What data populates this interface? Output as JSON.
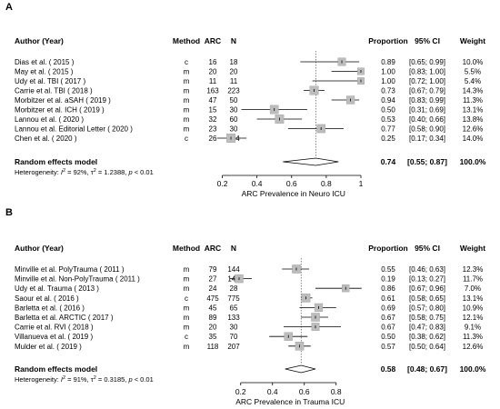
{
  "chart_data": [
    {
      "type": "forest",
      "panel": "A",
      "headers": {
        "study": "Author (Year)",
        "method": "Method",
        "events": "ARC",
        "total": "N",
        "estimate": "Proportion",
        "ci": "95% CI",
        "weight": "Weight"
      },
      "rows": [
        {
          "study": "Dias et al. ( 2015 )",
          "method": "c",
          "events": "16",
          "total": "18",
          "prop": 0.89,
          "lo": 0.65,
          "hi": 0.99,
          "prop_text": "0.89",
          "ci_text": "[0.65; 0.99]",
          "weight_text": "10.0%",
          "weight": 10.0
        },
        {
          "study": "May et al. ( 2015 )",
          "method": "m",
          "events": "20",
          "total": "20",
          "prop": 1.0,
          "lo": 0.83,
          "hi": 1.0,
          "prop_text": "1.00",
          "ci_text": "[0.83; 1.00]",
          "weight_text": "5.5%",
          "weight": 5.5
        },
        {
          "study": "Udy et al. TBI ( 2017 )",
          "method": "m",
          "events": "11",
          "total": "11",
          "prop": 1.0,
          "lo": 0.72,
          "hi": 1.0,
          "prop_text": "1.00",
          "ci_text": "[0.72; 1.00]",
          "weight_text": "5.4%",
          "weight": 5.4
        },
        {
          "study": "Carrie et al. TBI ( 2018 )",
          "method": "m",
          "events": "163",
          "total": "223",
          "prop": 0.73,
          "lo": 0.67,
          "hi": 0.79,
          "prop_text": "0.73",
          "ci_text": "[0.67; 0.79]",
          "weight_text": "14.3%",
          "weight": 14.3
        },
        {
          "study": "Morbitzer et al. aSAH ( 2019 )",
          "method": "m",
          "events": "47",
          "total": "50",
          "prop": 0.94,
          "lo": 0.83,
          "hi": 0.99,
          "prop_text": "0.94",
          "ci_text": "[0.83; 0.99]",
          "weight_text": "11.3%",
          "weight": 11.3
        },
        {
          "study": "Morbitzer et al. ICH ( 2019 )",
          "method": "m",
          "events": "15",
          "total": "30",
          "prop": 0.5,
          "lo": 0.31,
          "hi": 0.69,
          "prop_text": "0.50",
          "ci_text": "[0.31; 0.69]",
          "weight_text": "13.1%",
          "weight": 13.1
        },
        {
          "study": "Lannou et al. ( 2020 )",
          "method": "m",
          "events": "32",
          "total": "60",
          "prop": 0.53,
          "lo": 0.4,
          "hi": 0.66,
          "prop_text": "0.53",
          "ci_text": "[0.40; 0.66]",
          "weight_text": "13.8%",
          "weight": 13.8
        },
        {
          "study": "Lannou et al. Editorial Letter ( 2020 )",
          "method": "m",
          "events": "23",
          "total": "30",
          "prop": 0.77,
          "lo": 0.58,
          "hi": 0.9,
          "prop_text": "0.77",
          "ci_text": "[0.58; 0.90]",
          "weight_text": "12.6%",
          "weight": 12.6
        },
        {
          "study": "Chen et al. ( 2020 )",
          "method": "c",
          "events": "26",
          "total": "104",
          "prop": 0.25,
          "lo": 0.17,
          "hi": 0.34,
          "prop_text": "0.25",
          "ci_text": "[0.17; 0.34]",
          "weight_text": "14.0%",
          "weight": 14.0
        }
      ],
      "summary": {
        "label": "Random effects model",
        "prop": 0.74,
        "lo": 0.55,
        "hi": 0.87,
        "prop_text": "0.74",
        "ci_text": "[0.55; 0.87]",
        "weight_text": "100.0%"
      },
      "heterogeneity": {
        "prefix": "Heterogeneity: ",
        "i2_symbol": "I",
        "i2_value": " = 92%, ",
        "tau2_symbol": "τ",
        "tau2_value": " = 1.2388, ",
        "p_symbol": "p",
        "p_value": " < 0.01"
      },
      "xaxis": {
        "label": "ARC Prevalence in Neuro ICU",
        "ticks": [
          0.2,
          0.4,
          0.6,
          0.8,
          1
        ],
        "tick_labels": [
          "0.2",
          "0.4",
          "0.6",
          "0.8",
          "1"
        ],
        "range": [
          0.15,
          1.0
        ]
      }
    },
    {
      "type": "forest",
      "panel": "B",
      "headers": {
        "study": "Author (Year)",
        "method": "Method",
        "events": "ARC",
        "total": "N",
        "estimate": "Proportion",
        "ci": "95% CI",
        "weight": "Weight"
      },
      "rows": [
        {
          "study": "Minville et al. PolyTrauma ( 2011 )",
          "method": "m",
          "events": "79",
          "total": "144",
          "prop": 0.55,
          "lo": 0.46,
          "hi": 0.63,
          "prop_text": "0.55",
          "ci_text": "[0.46; 0.63]",
          "weight_text": "12.3%",
          "weight": 12.3
        },
        {
          "study": "Minville et al. Non-PolyTrauma ( 2011 )",
          "method": "m",
          "events": "27",
          "total": "140",
          "prop": 0.19,
          "lo": 0.13,
          "hi": 0.27,
          "prop_text": "0.19",
          "ci_text": "[0.13; 0.27]",
          "weight_text": "11.7%",
          "weight": 11.7
        },
        {
          "study": "Udy et al. Trauma ( 2013 )",
          "method": "m",
          "events": "24",
          "total": "28",
          "prop": 0.86,
          "lo": 0.67,
          "hi": 0.96,
          "prop_text": "0.86",
          "ci_text": "[0.67; 0.96]",
          "weight_text": "7.0%",
          "weight": 7.0
        },
        {
          "study": "Saour et al. ( 2016 )",
          "method": "c",
          "events": "475",
          "total": "775",
          "prop": 0.61,
          "lo": 0.58,
          "hi": 0.65,
          "prop_text": "0.61",
          "ci_text": "[0.58; 0.65]",
          "weight_text": "13.1%",
          "weight": 13.1
        },
        {
          "study": "Barletta et al. ( 2016 )",
          "method": "m",
          "events": "45",
          "total": "65",
          "prop": 0.69,
          "lo": 0.57,
          "hi": 0.8,
          "prop_text": "0.69",
          "ci_text": "[0.57; 0.80]",
          "weight_text": "10.9%",
          "weight": 10.9
        },
        {
          "study": "Barletta et al. ARCTIC ( 2017 )",
          "method": "m",
          "events": "89",
          "total": "133",
          "prop": 0.67,
          "lo": 0.58,
          "hi": 0.75,
          "prop_text": "0.67",
          "ci_text": "[0.58; 0.75]",
          "weight_text": "12.1%",
          "weight": 12.1
        },
        {
          "study": "Carrie et al. RVI ( 2018 )",
          "method": "m",
          "events": "20",
          "total": "30",
          "prop": 0.67,
          "lo": 0.47,
          "hi": 0.83,
          "prop_text": "0.67",
          "ci_text": "[0.47; 0.83]",
          "weight_text": "9.1%",
          "weight": 9.1
        },
        {
          "study": "Villanueva et al. ( 2019 )",
          "method": "c",
          "events": "35",
          "total": "70",
          "prop": 0.5,
          "lo": 0.38,
          "hi": 0.62,
          "prop_text": "0.50",
          "ci_text": "[0.38; 0.62]",
          "weight_text": "11.3%",
          "weight": 11.3
        },
        {
          "study": "Mulder et al. ( 2019 )",
          "method": "m",
          "events": "118",
          "total": "207",
          "prop": 0.57,
          "lo": 0.5,
          "hi": 0.64,
          "prop_text": "0.57",
          "ci_text": "[0.50; 0.64]",
          "weight_text": "12.6%",
          "weight": 12.6
        }
      ],
      "summary": {
        "label": "Random effects model",
        "prop": 0.58,
        "lo": 0.48,
        "hi": 0.67,
        "prop_text": "0.58",
        "ci_text": "[0.48; 0.67]",
        "weight_text": "100.0%"
      },
      "heterogeneity": {
        "prefix": "Heterogeneity: ",
        "i2_symbol": "I",
        "i2_value": " = 91%, ",
        "tau2_symbol": "τ",
        "tau2_value": " = 0.3185, ",
        "p_symbol": "p",
        "p_value": " < 0.01"
      },
      "xaxis": {
        "label": "ARC Prevalence in Trauma ICU",
        "ticks": [
          0.2,
          0.4,
          0.6,
          0.8
        ],
        "tick_labels": [
          "0.2",
          "0.4",
          "0.6",
          "0.8"
        ],
        "range": [
          0.15,
          0.95
        ]
      }
    }
  ]
}
